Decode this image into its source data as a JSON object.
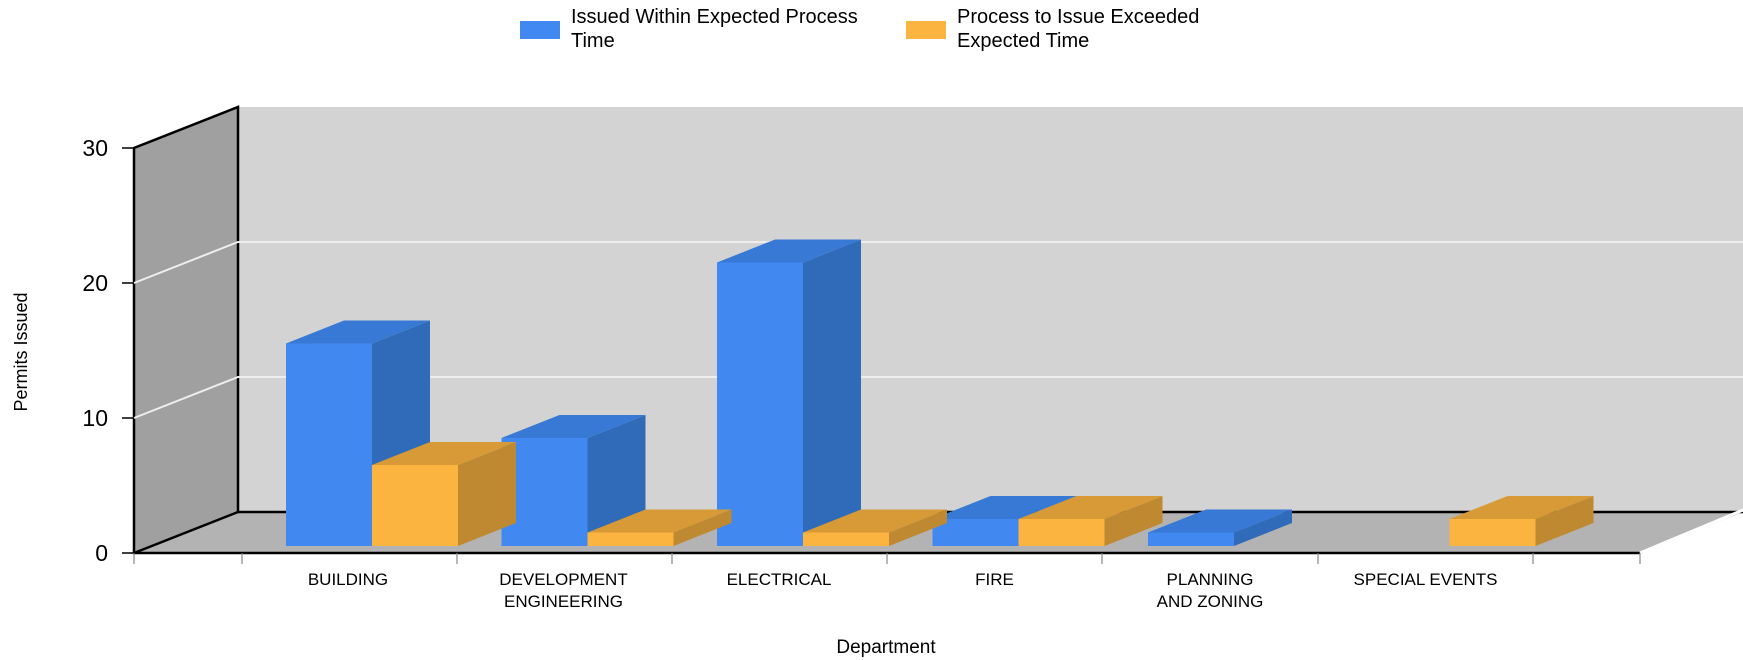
{
  "chart_data": {
    "type": "bar",
    "title": "",
    "xlabel": "Department",
    "ylabel": "Permits Issued",
    "ylim": [
      0,
      30
    ],
    "yticks": [
      0,
      10,
      20,
      30
    ],
    "grid": true,
    "legend_position": "top",
    "categories": [
      [
        "BUILDING"
      ],
      [
        "DEVELOPMENT",
        "ENGINEERING"
      ],
      [
        "ELECTRICAL"
      ],
      [
        "FIRE"
      ],
      [
        "PLANNING",
        "AND ZONING"
      ],
      [
        "SPECIAL EVENTS"
      ]
    ],
    "series": [
      {
        "name": [
          "Issued Within Expected Process",
          "Time"
        ],
        "color": "#4189f0",
        "side_color": "#306bb9",
        "top_color": "#3779d5",
        "values": [
          15,
          8,
          21,
          2,
          1,
          0
        ]
      },
      {
        "name": [
          "Process to Issue Exceeded",
          "Expected Time"
        ],
        "color": "#fbb43f",
        "side_color": "#be8930",
        "top_color": "#d89a36",
        "values": [
          6,
          1,
          1,
          2,
          0,
          2
        ]
      }
    ]
  }
}
